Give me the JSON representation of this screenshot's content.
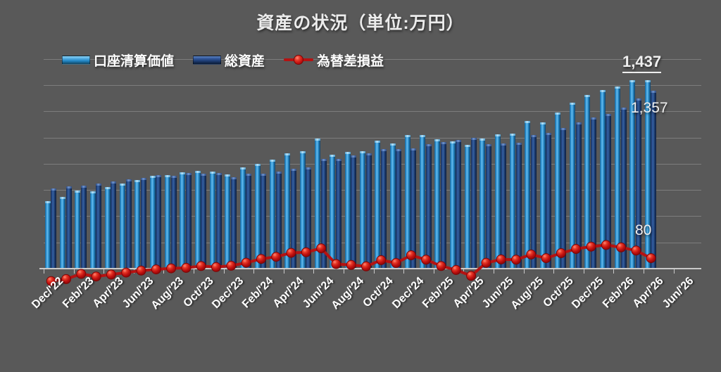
{
  "slide": {
    "background": "#595959"
  },
  "chart_data": {
    "type": "bar+line",
    "title": "資産の状況（単位:万円）",
    "unit": "万円",
    "legend_position": "top-left",
    "grid": true,
    "ylim": [
      0,
      1600
    ],
    "y_grid_step": 200,
    "y_axis_labels_visible": false,
    "months": [
      "Dec/'22",
      "Jan/'23",
      "Feb/'23",
      "Mar/'23",
      "Apr/'23",
      "May/'23",
      "Jun/'23",
      "Jul/'23",
      "Aug/'23",
      "Sep/'23",
      "Oct/'23",
      "Nov/'23",
      "Dec/'23",
      "Jan/'24",
      "Feb/'24",
      "Mar/'24",
      "Apr/'24",
      "May/'24",
      "Jun/'24",
      "Jul/'24",
      "Aug/'24",
      "Sep/'24",
      "Oct/'24",
      "Nov/'24",
      "Dec/'24",
      "Jan/'25",
      "Feb/'25",
      "Mar/'25",
      "Apr/'25",
      "May/'25",
      "Jun/'25",
      "Jul/'25",
      "Aug/'25",
      "Sep/'25",
      "Oct/'25",
      "Nov/'25",
      "Dec/'25",
      "Jan/'26",
      "Feb/'26",
      "Mar/'26",
      "Apr/'26"
    ],
    "x_axis": {
      "tick_labels": [
        "Dec/'22",
        "Feb/'23",
        "Apr/'23",
        "Jun/'23",
        "Aug/'23",
        "Oct/'23",
        "Dec/'23",
        "Feb/'24",
        "Apr/'24",
        "Jun/'24",
        "Aug/'24",
        "Oct/'24",
        "Dec/'24",
        "Feb/'25",
        "Apr/'25",
        "Jun/'25",
        "Aug/'25",
        "Oct/'25",
        "Dec/'25",
        "Feb/'26",
        "Apr/'26",
        "Jun/'26"
      ],
      "tick_label_step_months": 2,
      "label_rotation_deg": 45
    },
    "series": [
      {
        "name": "口座清算価値",
        "type": "bar",
        "color": "#2f93d4",
        "values": [
          515,
          545,
          595,
          590,
          620,
          650,
          675,
          710,
          712,
          734,
          745,
          740,
          720,
          770,
          800,
          830,
          880,
          895,
          990,
          870,
          890,
          895,
          975,
          955,
          1020,
          1020,
          985,
          970,
          945,
          992,
          1025,
          1030,
          1128,
          1115,
          1190,
          1268,
          1322,
          1362,
          1390,
          1438,
          1437
        ]
      },
      {
        "name": "総資産",
        "type": "bar",
        "color": "#1d3b70",
        "values": [
          610,
          625,
          635,
          650,
          665,
          680,
          690,
          716,
          710,
          728,
          725,
          728,
          698,
          725,
          726,
          740,
          760,
          770,
          835,
          835,
          862,
          878,
          910,
          912,
          918,
          952,
          965,
          980,
          1000,
          948,
          955,
          962,
          1020,
          1035,
          1072,
          1118,
          1154,
          1182,
          1228,
          1300,
          1357
        ]
      },
      {
        "name": "為替差損益",
        "type": "line",
        "color": "#b51212",
        "values": [
          -95,
          -80,
          -40,
          -60,
          -45,
          -30,
          -15,
          -6,
          2,
          6,
          20,
          12,
          22,
          45,
          74,
          90,
          120,
          125,
          155,
          35,
          28,
          17,
          65,
          43,
          102,
          68,
          20,
          -10,
          -55,
          44,
          70,
          68,
          108,
          80,
          118,
          150,
          168,
          180,
          162,
          138,
          80
        ]
      }
    ],
    "end_labels": {
      "account_value": "1,437",
      "total_assets": "1,357",
      "fx_gain_loss": "80"
    }
  }
}
